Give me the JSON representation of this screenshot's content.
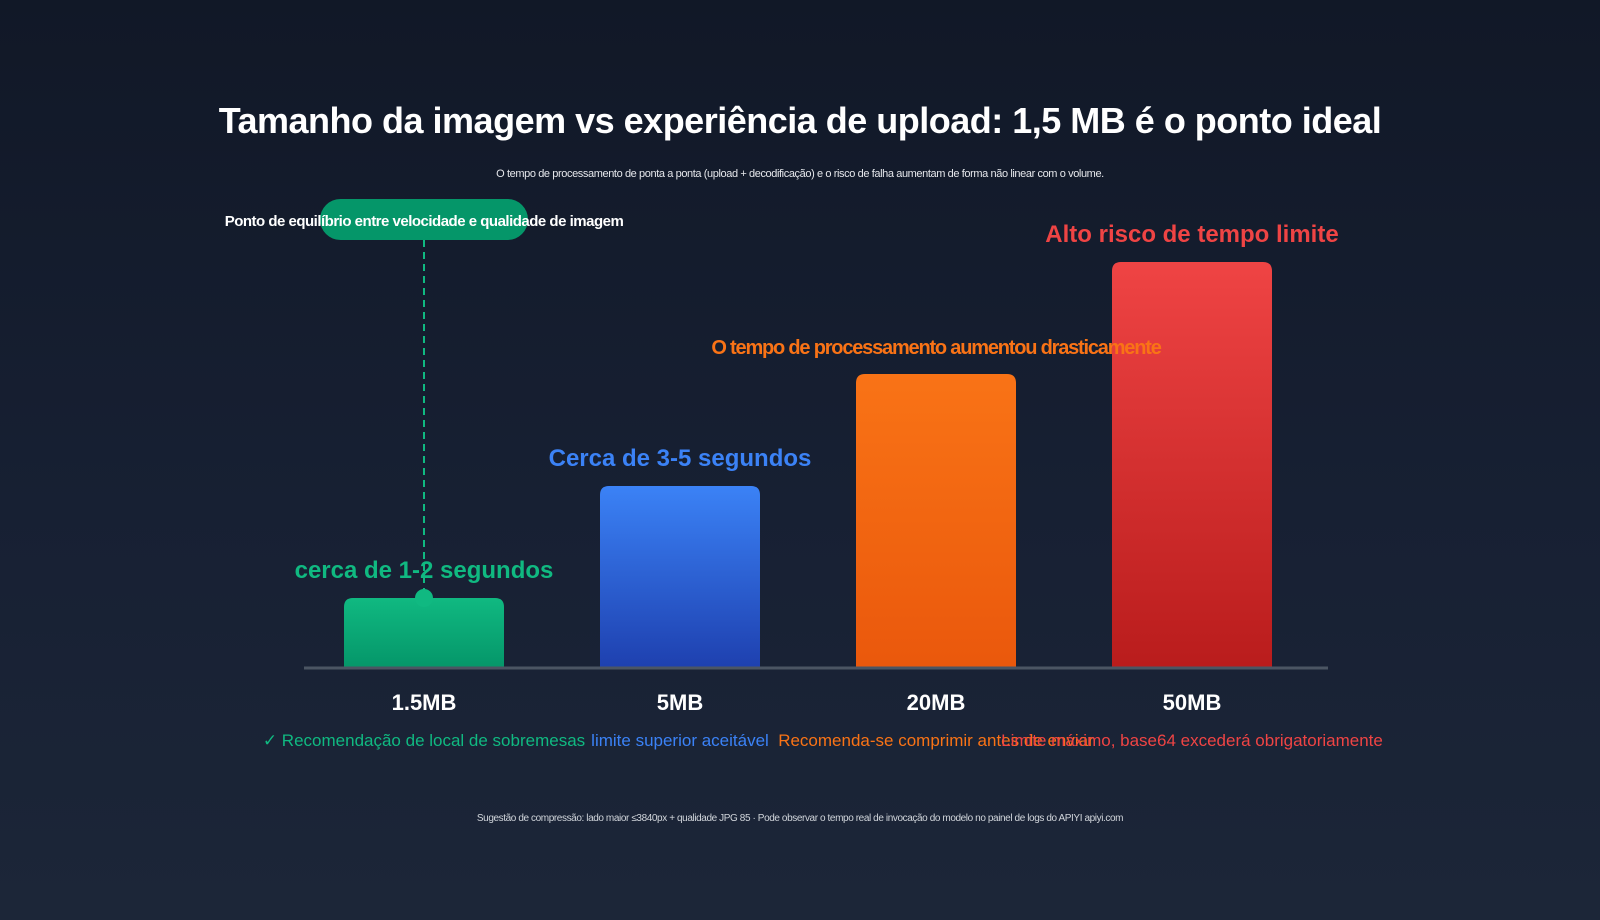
{
  "title": "Tamanho da imagem vs experiência de upload: 1,5 MB é o ponto ideal",
  "subtitle": "O tempo de processamento de ponta a ponta (upload + decodificação) e o risco de falha aumentam de forma não linear com o volume.",
  "footer": "Sugestão de compressão: lado maior ≤3840px + qualidade JPG 85 · Pode observar o tempo real de invocação do modelo no painel de logs do APIYI apiyi.com",
  "callout": "Ponto de equilíbrio entre velocidade e qualidade de imagem",
  "colors": {
    "green": "#10b981",
    "blue": "#3b82f6",
    "orange": "#f97316",
    "red": "#ef4444",
    "axis": "#4b5563"
  },
  "chart_data": {
    "type": "bar",
    "categories": [
      "1.5MB",
      "5MB",
      "20MB",
      "50MB"
    ],
    "values": [
      1,
      2.6,
      4.2,
      5.8
    ],
    "ylim": [
      0,
      6
    ],
    "grid": false,
    "value_labels": [
      "cerca de 1-2 segundos",
      "Cerca de 3-5 segundos",
      "O tempo de processamento aumentou drasticamente",
      "Alto risco de tempo limite"
    ],
    "notes": [
      "✓ Recomendação de local de sobremesas",
      "limite superior aceitável",
      "Recomenda-se comprimir antes de enviar",
      "Limite máximo, base64 excederá obrigatoriamente"
    ]
  }
}
